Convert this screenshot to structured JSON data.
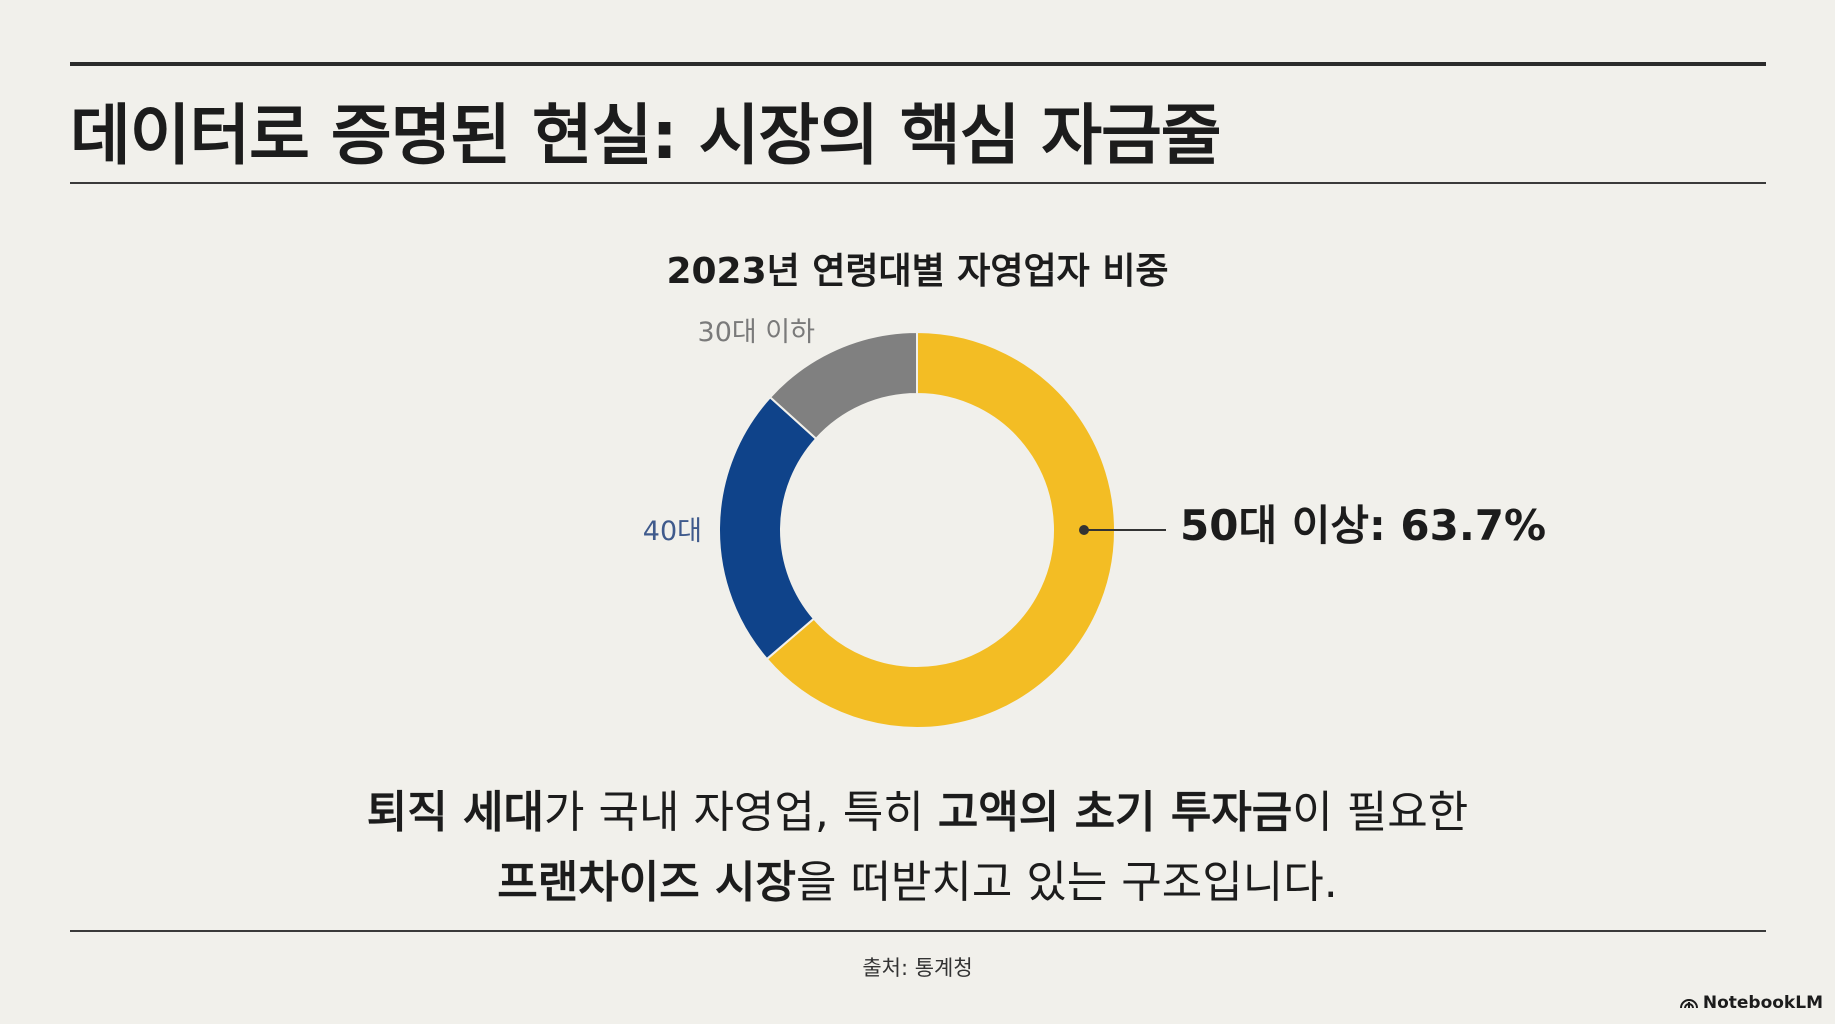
{
  "title": "데이터로 증명된 현실: 시장의 핵심 자금줄",
  "chart_data": {
    "type": "pie",
    "donut": true,
    "title": "2023년 연령대별 자영업자 비중",
    "slices": [
      {
        "label": "50대 이상: 63.7%",
        "value": 63.7,
        "color": "#f3bd24",
        "label_color": "#1c1c1c"
      },
      {
        "label": "40대",
        "value": 23.0,
        "color": "#0f438a",
        "label_color": "#3f5a8c"
      },
      {
        "label": "30대 이하",
        "value": 13.3,
        "color": "#808080",
        "label_color": "#7a7a7a"
      }
    ],
    "start_angle_deg": 0,
    "direction": "clockwise",
    "legend": "none"
  },
  "caption": {
    "line1": [
      {
        "text": "퇴직 세대",
        "bold": true
      },
      {
        "text": "가 국내 자영업, 특히 ",
        "bold": false
      },
      {
        "text": "고액의 초기 투자금",
        "bold": true
      },
      {
        "text": "이 필요한",
        "bold": false
      }
    ],
    "line2": [
      {
        "text": "프랜차이즈 시장",
        "bold": true
      },
      {
        "text": "을 떠받치고 있는 구조입니다.",
        "bold": false
      }
    ]
  },
  "source": "출처: 통계청",
  "brand": "NotebookLM"
}
